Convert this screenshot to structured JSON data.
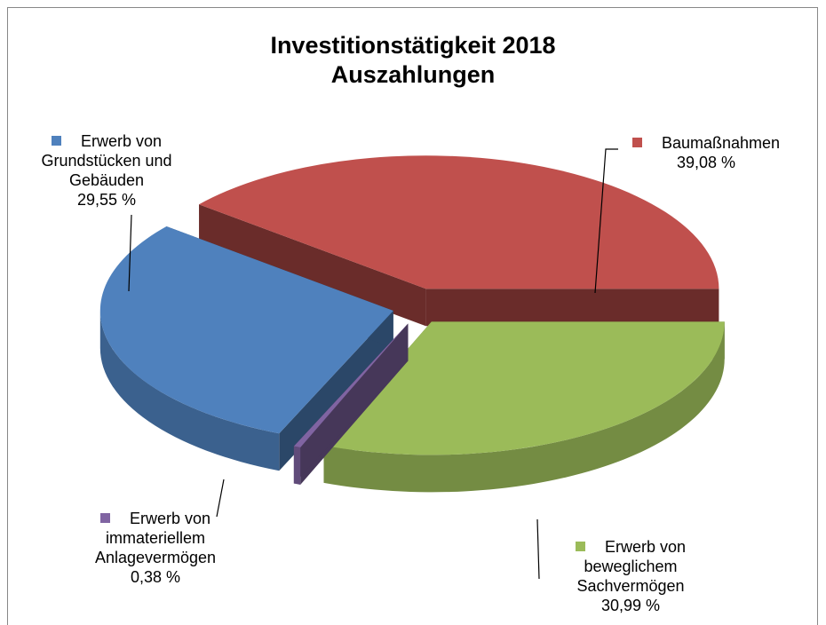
{
  "chart_data": {
    "type": "pie",
    "title": "Investitionstätigkeit 2018",
    "subtitle": "Auszahlungen",
    "categories": [
      "Baumaßnahmen",
      "Erwerb von beweglichem Sachvermögen",
      "Erwerb von immateriellem Anlagevermögen",
      "Erwerb von Grundstücken und Gebäuden"
    ],
    "values": [
      39.08,
      30.99,
      0.38,
      29.55
    ],
    "value_labels": [
      "39,08 %",
      "30,99 %",
      "0,38 %",
      "29,55 %"
    ],
    "colors": [
      "#c0504d",
      "#9bbb59",
      "#8064a2",
      "#4f81bd"
    ]
  }
}
